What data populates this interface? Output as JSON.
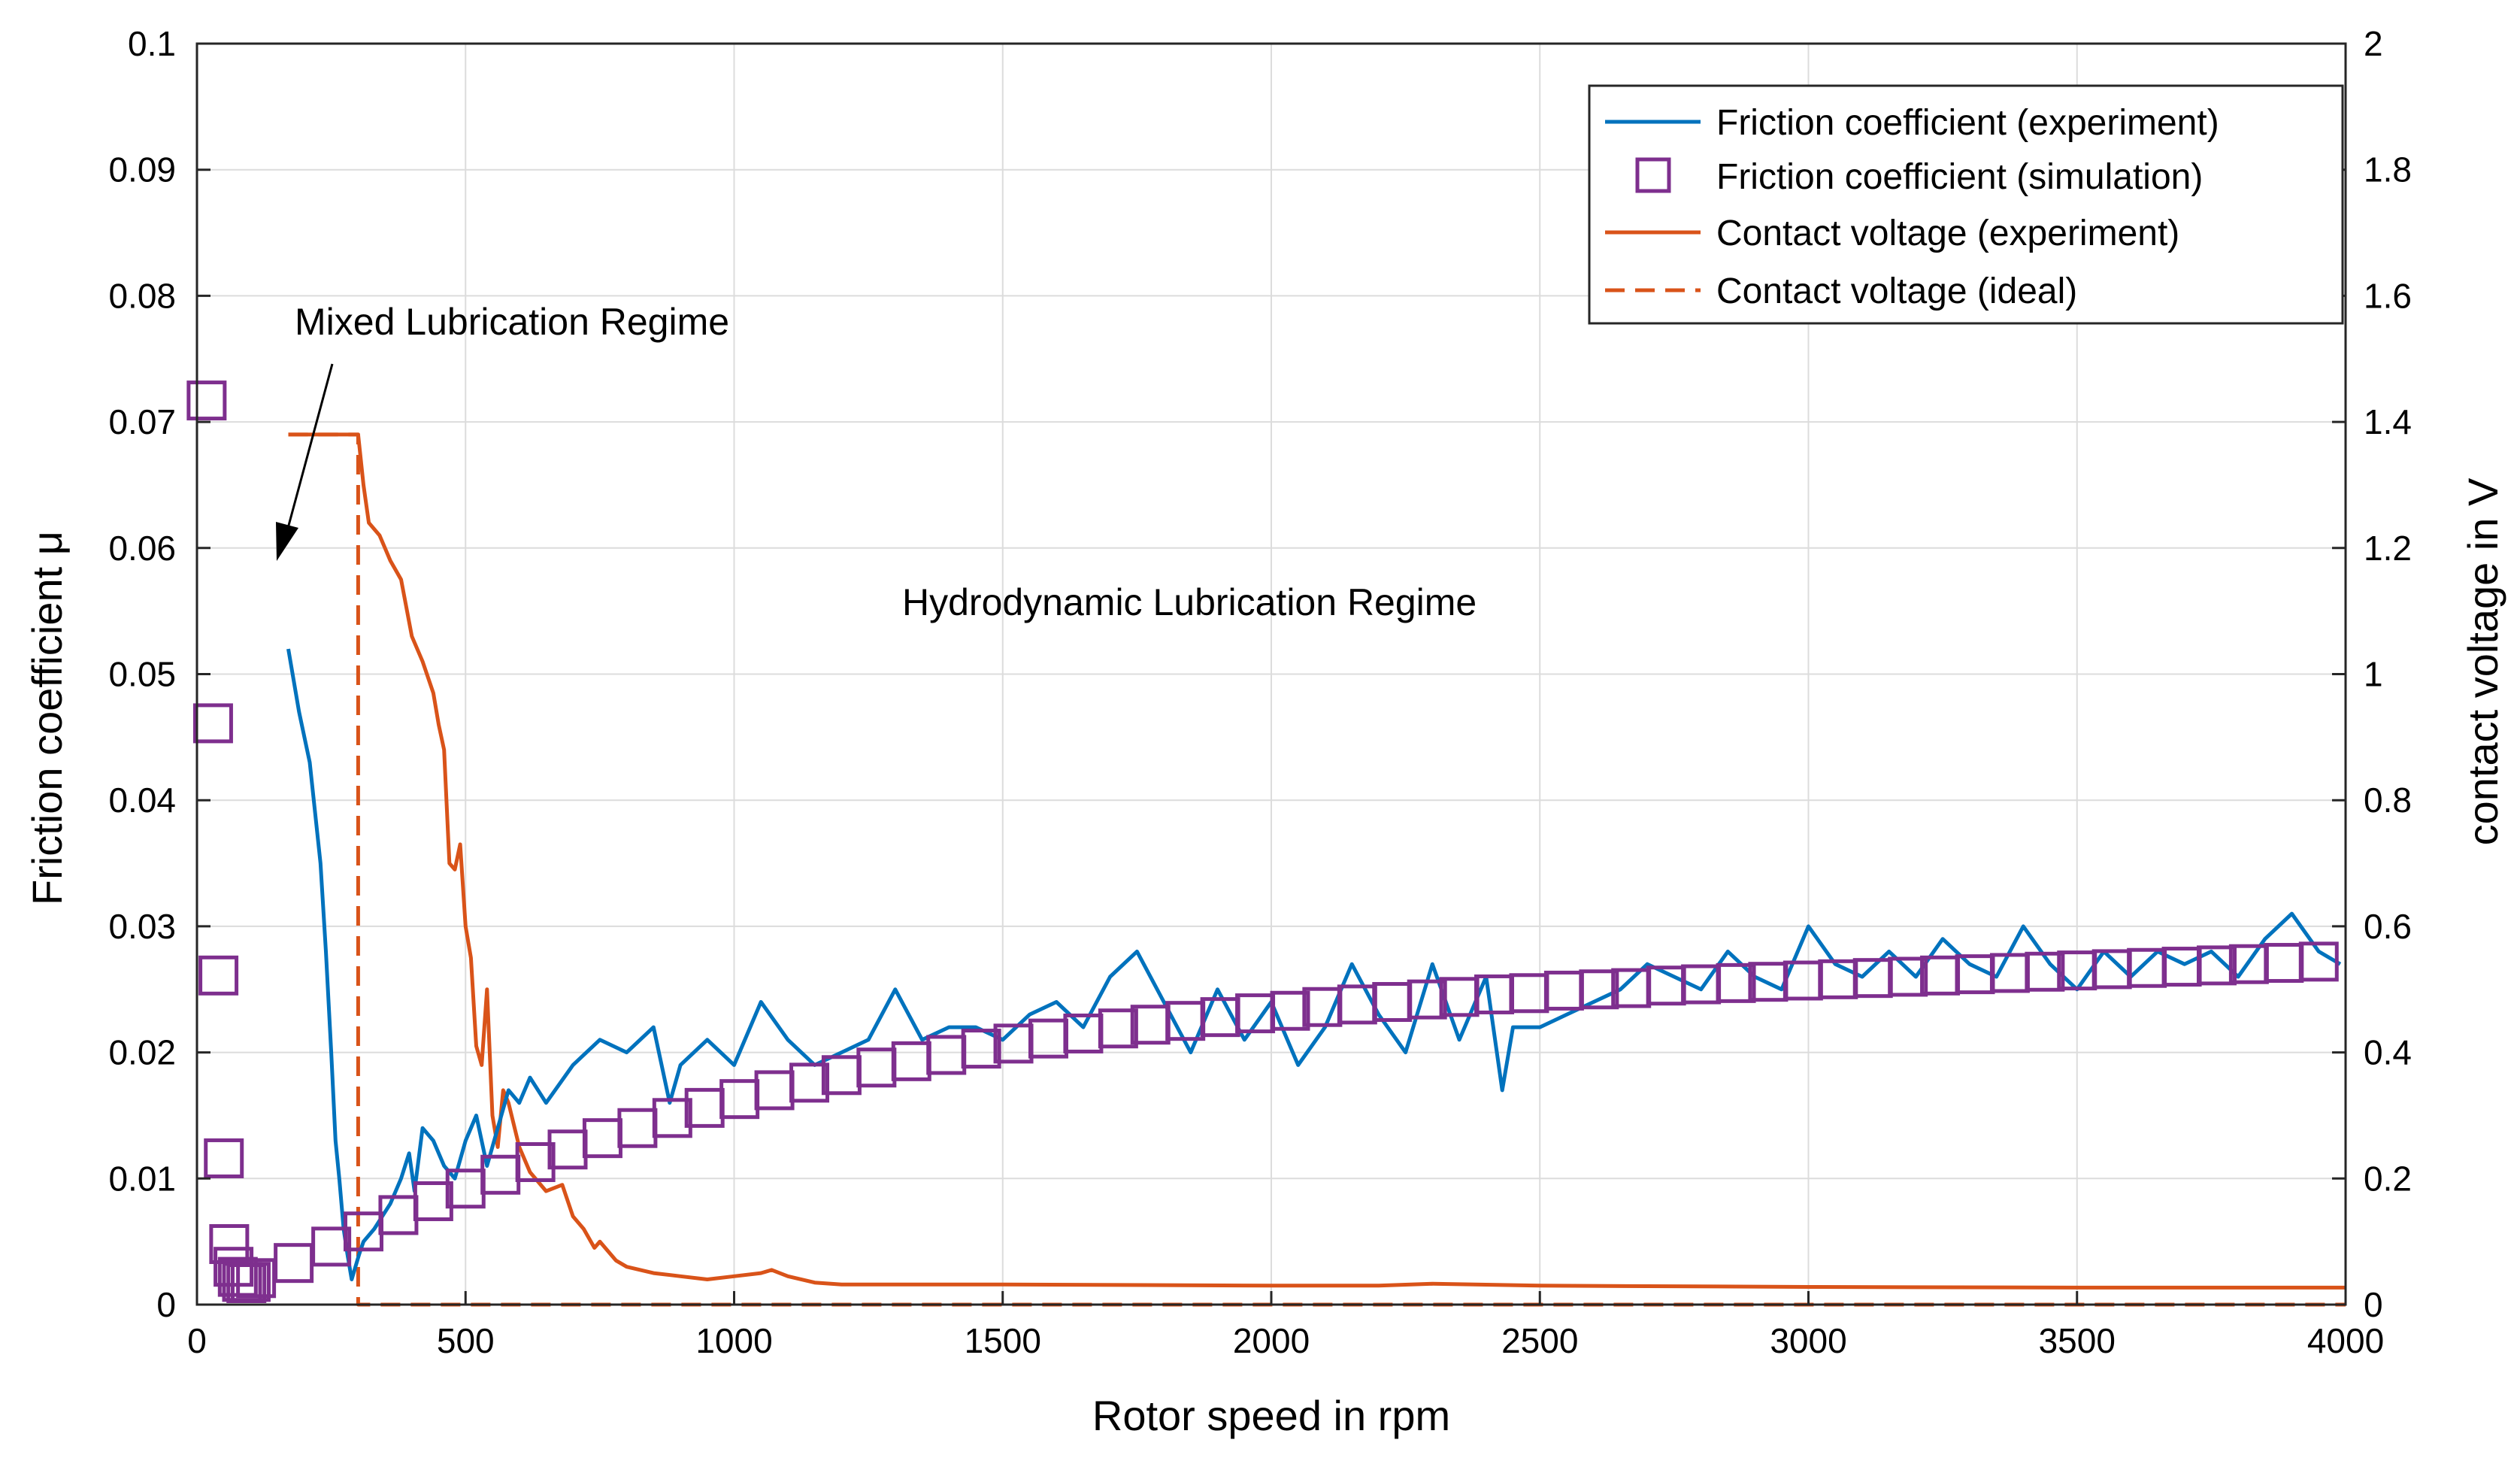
{
  "chart_data": {
    "type": "line",
    "xlabel": "Rotor speed in rpm",
    "ylabel_left": "Friction coefficient μ",
    "ylabel_right": "contact voltage in V",
    "xlim": [
      0,
      4000
    ],
    "ylim_left": [
      0,
      0.1
    ],
    "ylim_right": [
      0,
      2
    ],
    "x_ticks": [
      "0",
      "500",
      "1000",
      "1500",
      "2000",
      "2500",
      "3000",
      "3500",
      "4000"
    ],
    "y_left_ticks": [
      "0",
      "0.01",
      "0.02",
      "0.03",
      "0.04",
      "0.05",
      "0.06",
      "0.07",
      "0.08",
      "0.09",
      "0.1"
    ],
    "y_right_ticks": [
      "0",
      "0.2",
      "0.4",
      "0.6",
      "0.8",
      "1",
      "1.2",
      "1.4",
      "1.6",
      "1.8",
      "2"
    ],
    "grid": true,
    "legend_position": "top-right",
    "colors": {
      "friction": "#0072BD",
      "voltage": "#D95319",
      "simulation": "#7E2F8E"
    },
    "annotations": [
      {
        "text": "Mixed Lubrication Regime",
        "x": 290,
        "y": 0.078
      },
      {
        "text": "Hydrodynamic Lubrication Regime",
        "x": 1300,
        "y": 0.056
      }
    ],
    "series": [
      {
        "name": "Friction coefficient (experiment)",
        "axis": "left",
        "style": "solid",
        "x": [
          170,
          190,
          210,
          230,
          240,
          250,
          258,
          265,
          273,
          280,
          288,
          295,
          302,
          310,
          330,
          360,
          380,
          395,
          405,
          420,
          440,
          460,
          480,
          500,
          520,
          540,
          560,
          580,
          600,
          620,
          650,
          700,
          750,
          800,
          850,
          880,
          900,
          950,
          1000,
          1050,
          1100,
          1150,
          1200,
          1250,
          1300,
          1350,
          1400,
          1450,
          1500,
          1550,
          1600,
          1650,
          1700,
          1750,
          1800,
          1850,
          1900,
          1950,
          2000,
          2050,
          2100,
          2150,
          2200,
          2250,
          2300,
          2350,
          2400,
          2430,
          2450,
          2500,
          2550,
          2600,
          2650,
          2700,
          2750,
          2800,
          2850,
          2900,
          2950,
          3000,
          3050,
          3100,
          3150,
          3200,
          3250,
          3300,
          3350,
          3400,
          3450,
          3500,
          3550,
          3600,
          3650,
          3700,
          3750,
          3800,
          3850,
          3900,
          3950,
          3990
        ],
        "y": [
          0.052,
          0.047,
          0.043,
          0.035,
          0.028,
          0.02,
          0.013,
          0.01,
          0.006,
          0.004,
          0.002,
          0.003,
          0.004,
          0.005,
          0.006,
          0.008,
          0.01,
          0.012,
          0.009,
          0.014,
          0.013,
          0.011,
          0.01,
          0.013,
          0.015,
          0.011,
          0.014,
          0.017,
          0.016,
          0.018,
          0.016,
          0.019,
          0.021,
          0.02,
          0.022,
          0.016,
          0.019,
          0.021,
          0.019,
          0.024,
          0.021,
          0.019,
          0.02,
          0.021,
          0.025,
          0.021,
          0.022,
          0.022,
          0.021,
          0.023,
          0.024,
          0.022,
          0.026,
          0.028,
          0.024,
          0.02,
          0.025,
          0.021,
          0.024,
          0.019,
          0.022,
          0.027,
          0.023,
          0.02,
          0.027,
          0.021,
          0.026,
          0.017,
          0.022,
          0.022,
          0.023,
          0.024,
          0.025,
          0.027,
          0.026,
          0.025,
          0.028,
          0.026,
          0.025,
          0.03,
          0.027,
          0.026,
          0.028,
          0.026,
          0.029,
          0.027,
          0.026,
          0.03,
          0.027,
          0.025,
          0.028,
          0.026,
          0.028,
          0.027,
          0.028,
          0.026,
          0.029,
          0.031,
          0.028,
          0.027
        ]
      },
      {
        "name": "Friction coefficient (simulation)",
        "axis": "left",
        "style": "markers",
        "x": [
          18,
          30,
          40,
          50,
          60,
          68,
          76,
          84,
          92,
          100,
          110,
          180,
          250,
          310,
          375,
          440,
          500,
          565,
          630,
          690,
          755,
          820,
          885,
          945,
          1010,
          1075,
          1140,
          1200,
          1265,
          1330,
          1395,
          1460,
          1520,
          1585,
          1650,
          1715,
          1775,
          1840,
          1905,
          1970,
          2035,
          2095,
          2160,
          2225,
          2290,
          2350,
          2415,
          2480,
          2545,
          2610,
          2670,
          2735,
          2800,
          2865,
          2925,
          2990,
          3055,
          3120,
          3185,
          3245,
          3310,
          3375,
          3440,
          3500,
          3565,
          3630,
          3695,
          3760,
          3820,
          3885,
          3950
        ],
        "y": [
          0.0717,
          0.0461,
          0.0261,
          0.0116,
          0.0048,
          0.003,
          0.0022,
          0.0018,
          0.0017,
          0.0018,
          0.0021,
          0.0033,
          0.0046,
          0.0058,
          0.0071,
          0.0082,
          0.0092,
          0.0103,
          0.0113,
          0.0123,
          0.0132,
          0.014,
          0.0148,
          0.0156,
          0.0163,
          0.017,
          0.0176,
          0.0182,
          0.0188,
          0.0193,
          0.0198,
          0.0203,
          0.0207,
          0.0211,
          0.0215,
          0.0219,
          0.0222,
          0.0225,
          0.0228,
          0.0231,
          0.0233,
          0.0236,
          0.0238,
          0.024,
          0.0242,
          0.0244,
          0.0246,
          0.0247,
          0.0249,
          0.025,
          0.0251,
          0.0253,
          0.0254,
          0.0255,
          0.0256,
          0.0257,
          0.0258,
          0.0259,
          0.026,
          0.0261,
          0.0262,
          0.0263,
          0.0264,
          0.0265,
          0.0266,
          0.0267,
          0.0268,
          0.0269,
          0.027,
          0.0271,
          0.0272
        ]
      },
      {
        "name": "Contact voltage (experiment)",
        "axis": "right",
        "style": "solid",
        "x": [
          170,
          250,
          300,
          310,
          320,
          340,
          360,
          380,
          400,
          420,
          440,
          450,
          460,
          470,
          480,
          490,
          500,
          510,
          520,
          530,
          540,
          550,
          560,
          570,
          580,
          600,
          620,
          650,
          680,
          700,
          720,
          740,
          750,
          780,
          800,
          850,
          900,
          950,
          1000,
          1050,
          1070,
          1100,
          1150,
          1200,
          1500,
          2000,
          2200,
          2300,
          2500,
          3000,
          3500,
          4000
        ],
        "y": [
          1.38,
          1.38,
          1.38,
          1.3,
          1.24,
          1.22,
          1.18,
          1.15,
          1.06,
          1.02,
          0.97,
          0.92,
          0.88,
          0.7,
          0.69,
          0.73,
          0.6,
          0.55,
          0.41,
          0.38,
          0.5,
          0.3,
          0.25,
          0.34,
          0.32,
          0.25,
          0.21,
          0.18,
          0.19,
          0.14,
          0.12,
          0.09,
          0.1,
          0.07,
          0.06,
          0.05,
          0.045,
          0.04,
          0.045,
          0.05,
          0.055,
          0.045,
          0.035,
          0.032,
          0.032,
          0.03,
          0.03,
          0.033,
          0.03,
          0.028,
          0.027,
          0.027
        ]
      },
      {
        "name": "Contact voltage (ideal)",
        "axis": "right",
        "style": "dashed",
        "x": [
          170,
          300,
          300,
          4000
        ],
        "y": [
          1.38,
          1.38,
          0,
          0
        ]
      }
    ]
  }
}
